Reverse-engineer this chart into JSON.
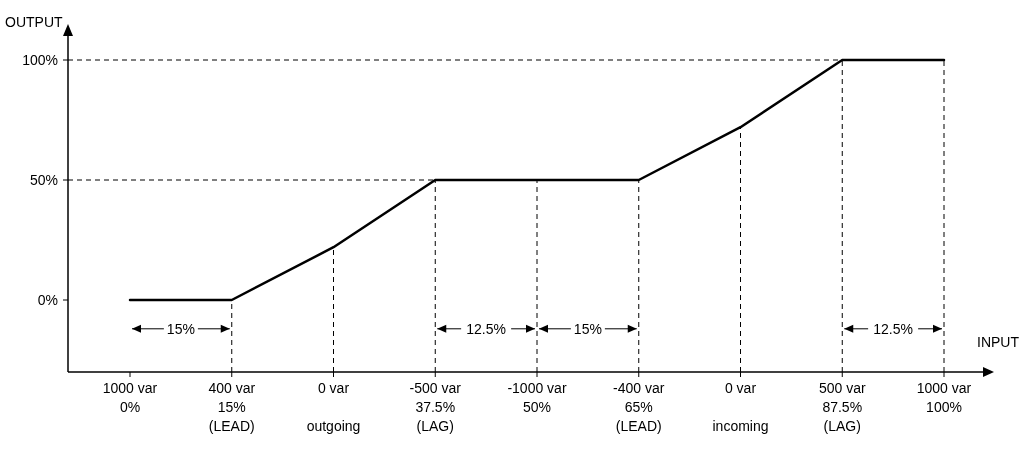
{
  "chart_data": {
    "type": "line",
    "xlabel": "INPUT",
    "ylabel": "OUTPUT",
    "categories": [
      "1000 var\n0%",
      "400 var\n15%\n(LEAD)",
      "0 var\n\noutgoing",
      "-500 var\n37.5%\n(LAG)",
      "-1000 var\n50%",
      "-400 var\n65%\n(LEAD)",
      "0 var\n\nincoming",
      "500 var\n87.5%\n(LAG)",
      "1000 var\n100%"
    ],
    "series": [
      {
        "color": "#000000",
        "values": [
          0,
          0,
          22,
          50,
          50,
          50,
          72,
          100,
          100
        ]
      }
    ],
    "ylim": [
      -30,
      110
    ],
    "yticks": [
      {
        "value": 0,
        "label": "0%"
      },
      {
        "value": 50,
        "label": "50%"
      },
      {
        "value": 100,
        "label": "100%"
      }
    ],
    "ref_lines": [
      {
        "axis": "y",
        "value": 50,
        "line_style": "dashed"
      },
      {
        "axis": "y",
        "value": 100,
        "line_style": "dashed"
      },
      {
        "axis": "x",
        "value": "400 var\n15%\n(LEAD)",
        "line_style": "dashed"
      },
      {
        "axis": "x",
        "value": "0 var\n\noutgoing",
        "line_style": "dashed"
      },
      {
        "axis": "x",
        "value": "-500 var\n37.5%\n(LAG)",
        "line_style": "dashed"
      },
      {
        "axis": "x",
        "value": "-1000 var\n50%",
        "line_style": "dashed"
      },
      {
        "axis": "x",
        "value": "-400 var\n65%\n(LEAD)",
        "line_style": "dashed"
      },
      {
        "axis": "x",
        "value": "0 var\n\nincoming",
        "line_style": "dashed"
      },
      {
        "axis": "x",
        "value": "500 var\n87.5%\n(LAG)",
        "line_style": "dashed"
      },
      {
        "axis": "x",
        "value": "1000 var\n100%",
        "line_style": "dashed"
      }
    ],
    "annotations": [
      {
        "text": "15%",
        "x": "400 var\n15%\n(LEAD)",
        "y": -12
      },
      {
        "text": "12.5%",
        "x": "-1000 var\n50%",
        "y": -12
      },
      {
        "text": "15%",
        "x": "-400 var\n65%\n(LEAD)",
        "y": -12
      },
      {
        "text": "12.5%",
        "x": "1000 var\n100%",
        "y": -12
      }
    ]
  }
}
